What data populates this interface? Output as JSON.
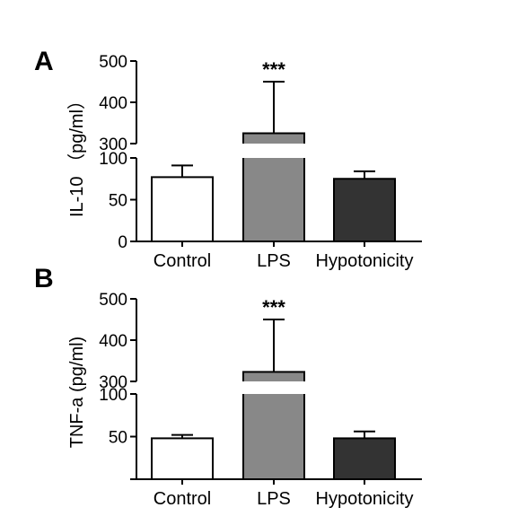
{
  "colors": {
    "axis": "#000000",
    "background": "#ffffff"
  },
  "chart_data": [
    {
      "type": "bar",
      "panel": "A",
      "ylabel": "IL-10 （pg/ml）",
      "categories": [
        "Control",
        "LPS",
        "Hypotonicity"
      ],
      "values": [
        77,
        325,
        75
      ],
      "errors_upper": [
        91,
        450,
        84
      ],
      "significance": [
        "",
        "***",
        ""
      ],
      "bar_colors": [
        "#ffffff",
        "#888888",
        "#333333"
      ],
      "axis_break": {
        "lower_max": 100,
        "upper_min": 300
      },
      "yticks_lower": [
        "0",
        "50",
        "100"
      ],
      "yticks_upper": [
        "300",
        "400",
        "500"
      ],
      "ylim": [
        0,
        500
      ]
    },
    {
      "type": "bar",
      "panel": "B",
      "ylabel": "TNF-a (pg/ml)",
      "categories": [
        "Control",
        "LPS",
        "Hypotonicity"
      ],
      "values": [
        48,
        323,
        48
      ],
      "errors_upper": [
        52,
        450,
        56
      ],
      "significance": [
        "",
        "***",
        ""
      ],
      "bar_colors": [
        "#ffffff",
        "#888888",
        "#333333"
      ],
      "axis_break": {
        "lower_max": 100,
        "upper_min": 300
      },
      "yticks_lower": [
        "50",
        "100"
      ],
      "yticks_upper": [
        "300",
        "400",
        "500"
      ],
      "ylim": [
        0,
        500
      ]
    }
  ]
}
